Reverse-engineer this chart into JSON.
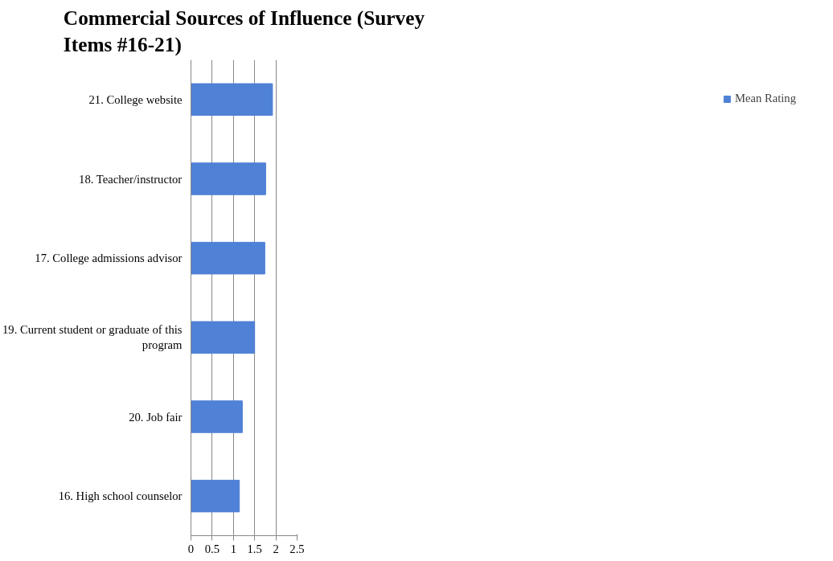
{
  "chart_data": {
    "type": "bar",
    "orientation": "horizontal",
    "title": "Commercial Sources of Influence (Survey Items #16-21)",
    "categories": [
      "21. College website",
      "18. Teacher/instructor",
      "17. College admissions advisor",
      "19. Current student or graduate of this program",
      "20. Job fair",
      "16. High school counselor"
    ],
    "series": [
      {
        "name": "Mean Rating",
        "color": "#4f81d6",
        "values": [
          1.92,
          1.76,
          1.74,
          1.5,
          1.21,
          1.14
        ]
      }
    ],
    "xlim": [
      0,
      2.5
    ],
    "xticks": [
      0,
      0.5,
      1,
      1.5,
      2,
      2.5
    ],
    "grid": "x",
    "legend": "right"
  }
}
